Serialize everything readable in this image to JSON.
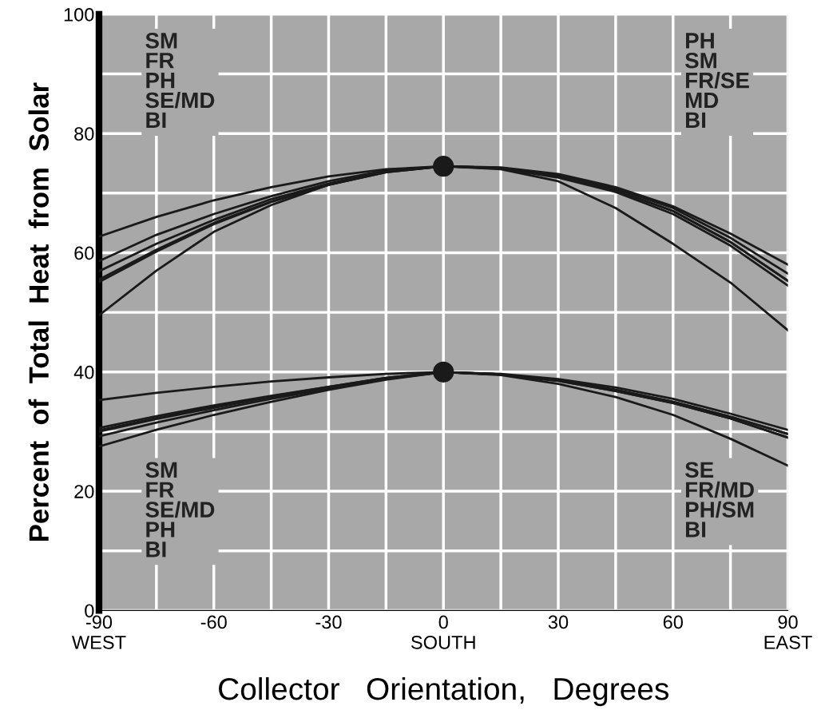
{
  "chart_data": {
    "type": "line",
    "xlabel": "Collector   Orientation,   Degrees",
    "ylabel": "Percent  of  Total  Heat  from  Solar",
    "x": [
      -90,
      -75,
      -60,
      -45,
      -30,
      -15,
      0,
      15,
      30,
      45,
      60,
      75,
      90
    ],
    "series": [
      {
        "color": "#1a1a1a",
        "values": [
          62.7,
          66,
          68.8,
          71,
          72.8,
          74,
          74.5,
          74.2,
          73,
          70.8,
          67.5,
          62.5,
          56.5
        ]
      },
      {
        "color": "#1a1a1a",
        "values": [
          58.6,
          63,
          66.5,
          69.5,
          72,
          73.8,
          74.5,
          74.2,
          72.8,
          70.5,
          67,
          61.8,
          55.3
        ]
      },
      {
        "color": "#1a1a1a",
        "values": [
          56.9,
          61.5,
          65.5,
          69,
          71.6,
          73.6,
          74.5,
          74.3,
          73.2,
          71,
          67.8,
          63.2,
          58
        ]
      },
      {
        "color": "#1a1a1a",
        "values": [
          55.5,
          60.5,
          65,
          68.6,
          71.4,
          73.5,
          74.5,
          74.2,
          72.8,
          70.5,
          67,
          61.8,
          55.3
        ]
      },
      {
        "color": "#1a1a1a",
        "values": [
          55.1,
          60.2,
          64.8,
          68.5,
          71.4,
          73.5,
          74.5,
          74.1,
          72.6,
          70.2,
          66.5,
          61.2,
          54.5
        ]
      },
      {
        "color": "#1a1a1a",
        "values": [
          49.5,
          57,
          63.5,
          68,
          71.4,
          73.6,
          74.5,
          74,
          72,
          67.5,
          61.5,
          55,
          47
        ]
      },
      {
        "color": "#1a1a1a",
        "values": [
          35.3,
          36.5,
          37.5,
          38.4,
          39.1,
          39.7,
          40,
          39.6,
          38.5,
          36.8,
          34.8,
          32.2,
          29
        ]
      },
      {
        "color": "#1a1a1a",
        "values": [
          30.6,
          32.6,
          34.4,
          36,
          37.5,
          39,
          40,
          39.6,
          38.6,
          37,
          35,
          32.5,
          29.6
        ]
      },
      {
        "color": "#1a1a1a",
        "values": [
          30.2,
          32.3,
          34.2,
          35.9,
          37.5,
          39,
          40,
          39.7,
          38.8,
          37.4,
          35.5,
          33,
          30.3
        ]
      },
      {
        "color": "#1a1a1a",
        "values": [
          30,
          32.1,
          34,
          35.8,
          37.4,
          38.9,
          40,
          39.6,
          38.6,
          37,
          35,
          32.5,
          29.6
        ]
      },
      {
        "color": "#1a1a1a",
        "values": [
          29.2,
          31.5,
          33.6,
          35.5,
          37.2,
          38.8,
          40,
          39.6,
          38.5,
          36.8,
          34.8,
          32.2,
          29
        ]
      },
      {
        "color": "#1a1a1a",
        "values": [
          27.5,
          30.3,
          32.8,
          35,
          37,
          38.7,
          40,
          39.5,
          38,
          35.8,
          32.8,
          28.8,
          24.3
        ]
      },
      {
        "type": "scatter",
        "x": [
          0,
          0
        ],
        "color": "#1a1a1a",
        "marker": "circle",
        "values": [
          74.5,
          40
        ]
      }
    ],
    "xlim": [
      -90,
      90
    ],
    "xticks": [
      {
        "value": -90,
        "label": "-90\nWEST"
      },
      {
        "value": -75,
        "label": null
      },
      -60,
      {
        "value": -45,
        "label": null
      },
      -30,
      {
        "value": -15,
        "label": null
      },
      {
        "value": 0,
        "label": "0\nSOUTH"
      },
      {
        "value": 15,
        "label": null
      },
      30,
      {
        "value": 45,
        "label": null
      },
      60,
      {
        "value": 75,
        "label": null
      },
      {
        "value": 90,
        "label": "90\nEAST"
      }
    ],
    "ylim": [
      0,
      100
    ],
    "yticks": [
      0,
      {
        "value": 10,
        "label": null
      },
      20,
      {
        "value": 30,
        "label": null
      },
      40,
      {
        "value": 50,
        "label": null
      },
      60,
      {
        "value": 70,
        "label": null
      },
      80,
      {
        "value": 90,
        "label": null
      },
      100
    ],
    "grid": true,
    "marker": "none",
    "line_style": "solid",
    "annotations": [
      "SM\nFR\nPH\nSE/MD\nBI",
      "PH\nSM\nFR/SE\nMD\nBI",
      "SM\nFR\nSE/MD\nPH\nBI",
      "SE\nFR/MD\nPH/SM\nBI"
    ]
  }
}
